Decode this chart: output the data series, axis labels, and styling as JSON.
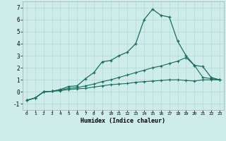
{
  "xlabel": "Humidex (Indice chaleur)",
  "bg_color": "#ceecea",
  "grid_color": "#b0d8d5",
  "line_color": "#1a6b5e",
  "xlim": [
    -0.5,
    23.5
  ],
  "ylim": [
    -1.5,
    7.5
  ],
  "xticks": [
    0,
    1,
    2,
    3,
    4,
    5,
    6,
    7,
    8,
    9,
    10,
    11,
    12,
    13,
    14,
    15,
    16,
    17,
    18,
    19,
    20,
    21,
    22,
    23
  ],
  "yticks": [
    -1,
    0,
    1,
    2,
    3,
    4,
    5,
    6,
    7
  ],
  "line1_x": [
    0,
    1,
    2,
    3,
    4,
    5,
    6,
    7,
    8,
    9,
    10,
    11,
    12,
    13,
    14,
    15,
    16,
    17,
    18,
    19,
    20,
    21,
    22,
    23
  ],
  "line1_y": [
    -0.7,
    -0.5,
    0.0,
    0.05,
    0.2,
    0.45,
    0.5,
    1.1,
    1.6,
    2.5,
    2.6,
    3.0,
    3.3,
    4.0,
    6.0,
    6.85,
    6.35,
    6.2,
    4.2,
    3.0,
    2.2,
    2.1,
    1.2,
    1.0
  ],
  "line2_x": [
    0,
    1,
    2,
    3,
    4,
    5,
    6,
    7,
    8,
    9,
    10,
    11,
    12,
    13,
    14,
    15,
    16,
    17,
    18,
    19,
    20,
    21,
    22,
    23
  ],
  "line2_y": [
    -0.7,
    -0.5,
    0.0,
    0.05,
    0.15,
    0.3,
    0.35,
    0.5,
    0.65,
    0.85,
    1.0,
    1.2,
    1.4,
    1.6,
    1.8,
    2.0,
    2.15,
    2.35,
    2.55,
    2.85,
    2.2,
    1.2,
    1.1,
    1.0
  ],
  "line3_x": [
    0,
    1,
    2,
    3,
    4,
    5,
    6,
    7,
    8,
    9,
    10,
    11,
    12,
    13,
    14,
    15,
    16,
    17,
    18,
    19,
    20,
    21,
    22,
    23
  ],
  "line3_y": [
    -0.7,
    -0.5,
    0.0,
    0.05,
    0.1,
    0.2,
    0.25,
    0.3,
    0.4,
    0.5,
    0.6,
    0.65,
    0.7,
    0.8,
    0.85,
    0.9,
    0.95,
    1.0,
    1.0,
    0.95,
    0.9,
    1.0,
    1.0,
    1.0
  ]
}
